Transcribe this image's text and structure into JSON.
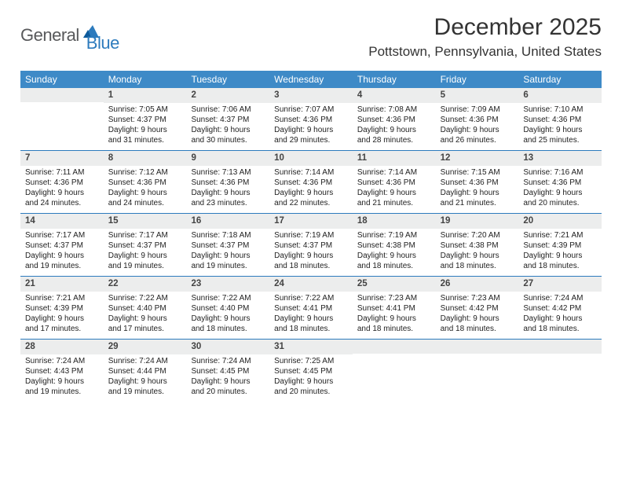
{
  "logo": {
    "part1": "General",
    "part2": "Blue"
  },
  "title": "December 2025",
  "location": "Pottstown, Pennsylvania, United States",
  "colors": {
    "header_bg": "#3e8ac7",
    "daynum_bg": "#eceded",
    "rule": "#2d7bbd",
    "logo_gray": "#58595b",
    "logo_blue": "#2d7bbd"
  },
  "day_names": [
    "Sunday",
    "Monday",
    "Tuesday",
    "Wednesday",
    "Thursday",
    "Friday",
    "Saturday"
  ],
  "weeks": [
    [
      {
        "n": "",
        "sr": "",
        "ss": "",
        "dl": ""
      },
      {
        "n": "1",
        "sr": "Sunrise: 7:05 AM",
        "ss": "Sunset: 4:37 PM",
        "dl": "Daylight: 9 hours and 31 minutes."
      },
      {
        "n": "2",
        "sr": "Sunrise: 7:06 AM",
        "ss": "Sunset: 4:37 PM",
        "dl": "Daylight: 9 hours and 30 minutes."
      },
      {
        "n": "3",
        "sr": "Sunrise: 7:07 AM",
        "ss": "Sunset: 4:36 PM",
        "dl": "Daylight: 9 hours and 29 minutes."
      },
      {
        "n": "4",
        "sr": "Sunrise: 7:08 AM",
        "ss": "Sunset: 4:36 PM",
        "dl": "Daylight: 9 hours and 28 minutes."
      },
      {
        "n": "5",
        "sr": "Sunrise: 7:09 AM",
        "ss": "Sunset: 4:36 PM",
        "dl": "Daylight: 9 hours and 26 minutes."
      },
      {
        "n": "6",
        "sr": "Sunrise: 7:10 AM",
        "ss": "Sunset: 4:36 PM",
        "dl": "Daylight: 9 hours and 25 minutes."
      }
    ],
    [
      {
        "n": "7",
        "sr": "Sunrise: 7:11 AM",
        "ss": "Sunset: 4:36 PM",
        "dl": "Daylight: 9 hours and 24 minutes."
      },
      {
        "n": "8",
        "sr": "Sunrise: 7:12 AM",
        "ss": "Sunset: 4:36 PM",
        "dl": "Daylight: 9 hours and 24 minutes."
      },
      {
        "n": "9",
        "sr": "Sunrise: 7:13 AM",
        "ss": "Sunset: 4:36 PM",
        "dl": "Daylight: 9 hours and 23 minutes."
      },
      {
        "n": "10",
        "sr": "Sunrise: 7:14 AM",
        "ss": "Sunset: 4:36 PM",
        "dl": "Daylight: 9 hours and 22 minutes."
      },
      {
        "n": "11",
        "sr": "Sunrise: 7:14 AM",
        "ss": "Sunset: 4:36 PM",
        "dl": "Daylight: 9 hours and 21 minutes."
      },
      {
        "n": "12",
        "sr": "Sunrise: 7:15 AM",
        "ss": "Sunset: 4:36 PM",
        "dl": "Daylight: 9 hours and 21 minutes."
      },
      {
        "n": "13",
        "sr": "Sunrise: 7:16 AM",
        "ss": "Sunset: 4:36 PM",
        "dl": "Daylight: 9 hours and 20 minutes."
      }
    ],
    [
      {
        "n": "14",
        "sr": "Sunrise: 7:17 AM",
        "ss": "Sunset: 4:37 PM",
        "dl": "Daylight: 9 hours and 19 minutes."
      },
      {
        "n": "15",
        "sr": "Sunrise: 7:17 AM",
        "ss": "Sunset: 4:37 PM",
        "dl": "Daylight: 9 hours and 19 minutes."
      },
      {
        "n": "16",
        "sr": "Sunrise: 7:18 AM",
        "ss": "Sunset: 4:37 PM",
        "dl": "Daylight: 9 hours and 19 minutes."
      },
      {
        "n": "17",
        "sr": "Sunrise: 7:19 AM",
        "ss": "Sunset: 4:37 PM",
        "dl": "Daylight: 9 hours and 18 minutes."
      },
      {
        "n": "18",
        "sr": "Sunrise: 7:19 AM",
        "ss": "Sunset: 4:38 PM",
        "dl": "Daylight: 9 hours and 18 minutes."
      },
      {
        "n": "19",
        "sr": "Sunrise: 7:20 AM",
        "ss": "Sunset: 4:38 PM",
        "dl": "Daylight: 9 hours and 18 minutes."
      },
      {
        "n": "20",
        "sr": "Sunrise: 7:21 AM",
        "ss": "Sunset: 4:39 PM",
        "dl": "Daylight: 9 hours and 18 minutes."
      }
    ],
    [
      {
        "n": "21",
        "sr": "Sunrise: 7:21 AM",
        "ss": "Sunset: 4:39 PM",
        "dl": "Daylight: 9 hours and 17 minutes."
      },
      {
        "n": "22",
        "sr": "Sunrise: 7:22 AM",
        "ss": "Sunset: 4:40 PM",
        "dl": "Daylight: 9 hours and 17 minutes."
      },
      {
        "n": "23",
        "sr": "Sunrise: 7:22 AM",
        "ss": "Sunset: 4:40 PM",
        "dl": "Daylight: 9 hours and 18 minutes."
      },
      {
        "n": "24",
        "sr": "Sunrise: 7:22 AM",
        "ss": "Sunset: 4:41 PM",
        "dl": "Daylight: 9 hours and 18 minutes."
      },
      {
        "n": "25",
        "sr": "Sunrise: 7:23 AM",
        "ss": "Sunset: 4:41 PM",
        "dl": "Daylight: 9 hours and 18 minutes."
      },
      {
        "n": "26",
        "sr": "Sunrise: 7:23 AM",
        "ss": "Sunset: 4:42 PM",
        "dl": "Daylight: 9 hours and 18 minutes."
      },
      {
        "n": "27",
        "sr": "Sunrise: 7:24 AM",
        "ss": "Sunset: 4:42 PM",
        "dl": "Daylight: 9 hours and 18 minutes."
      }
    ],
    [
      {
        "n": "28",
        "sr": "Sunrise: 7:24 AM",
        "ss": "Sunset: 4:43 PM",
        "dl": "Daylight: 9 hours and 19 minutes."
      },
      {
        "n": "29",
        "sr": "Sunrise: 7:24 AM",
        "ss": "Sunset: 4:44 PM",
        "dl": "Daylight: 9 hours and 19 minutes."
      },
      {
        "n": "30",
        "sr": "Sunrise: 7:24 AM",
        "ss": "Sunset: 4:45 PM",
        "dl": "Daylight: 9 hours and 20 minutes."
      },
      {
        "n": "31",
        "sr": "Sunrise: 7:25 AM",
        "ss": "Sunset: 4:45 PM",
        "dl": "Daylight: 9 hours and 20 minutes."
      },
      {
        "n": "",
        "sr": "",
        "ss": "",
        "dl": ""
      },
      {
        "n": "",
        "sr": "",
        "ss": "",
        "dl": ""
      },
      {
        "n": "",
        "sr": "",
        "ss": "",
        "dl": ""
      }
    ]
  ]
}
